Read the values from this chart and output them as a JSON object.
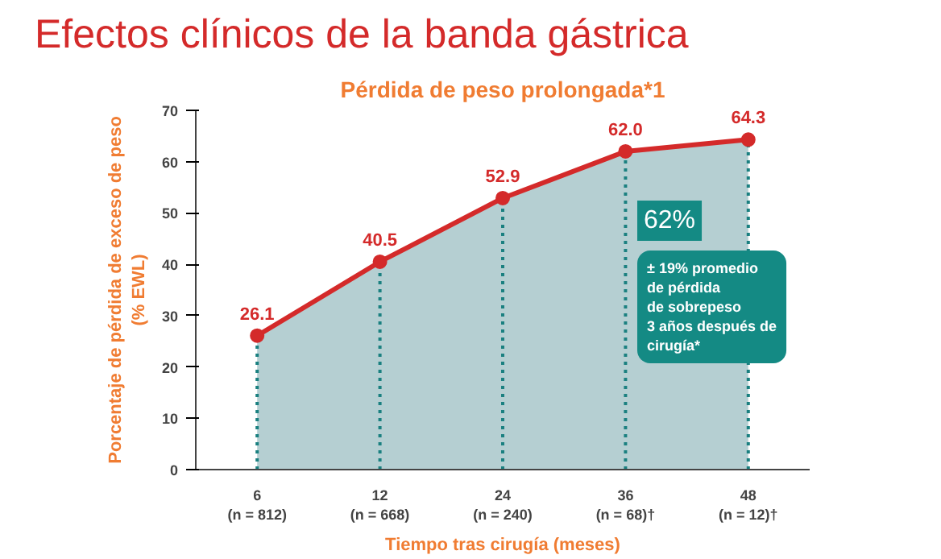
{
  "chart_data": {
    "type": "area",
    "title": "Efectos clínicos de la banda gástrica",
    "subtitle": "Pérdida de peso prolongada*1",
    "xlabel": "Tiempo tras cirugía (meses)",
    "ylabel": "Porcentaje de pérdida de exceso de peso\n(% EWL)",
    "categories": [
      "6\n(n = 812)",
      "12\n(n = 668)",
      "24\n(n = 240)",
      "36\n(n = 68)†",
      "48\n(n = 12)†"
    ],
    "series": [
      {
        "color": "#d42a2a",
        "values": [
          26.1,
          40.5,
          52.9,
          62.0,
          64.3
        ]
      }
    ],
    "value_labels": [
      "26.1",
      "40.5",
      "52.9",
      "62.0",
      "64.3"
    ],
    "ylim": [
      0,
      70
    ],
    "yticks": [
      0,
      10,
      20,
      30,
      40,
      50,
      60,
      70
    ],
    "grid": "x",
    "marker": "circle",
    "annotations": [
      "62%",
      "± 19% promedio\nde pérdida\nde sobrepeso\n3 años después de\ncirugía*"
    ]
  }
}
